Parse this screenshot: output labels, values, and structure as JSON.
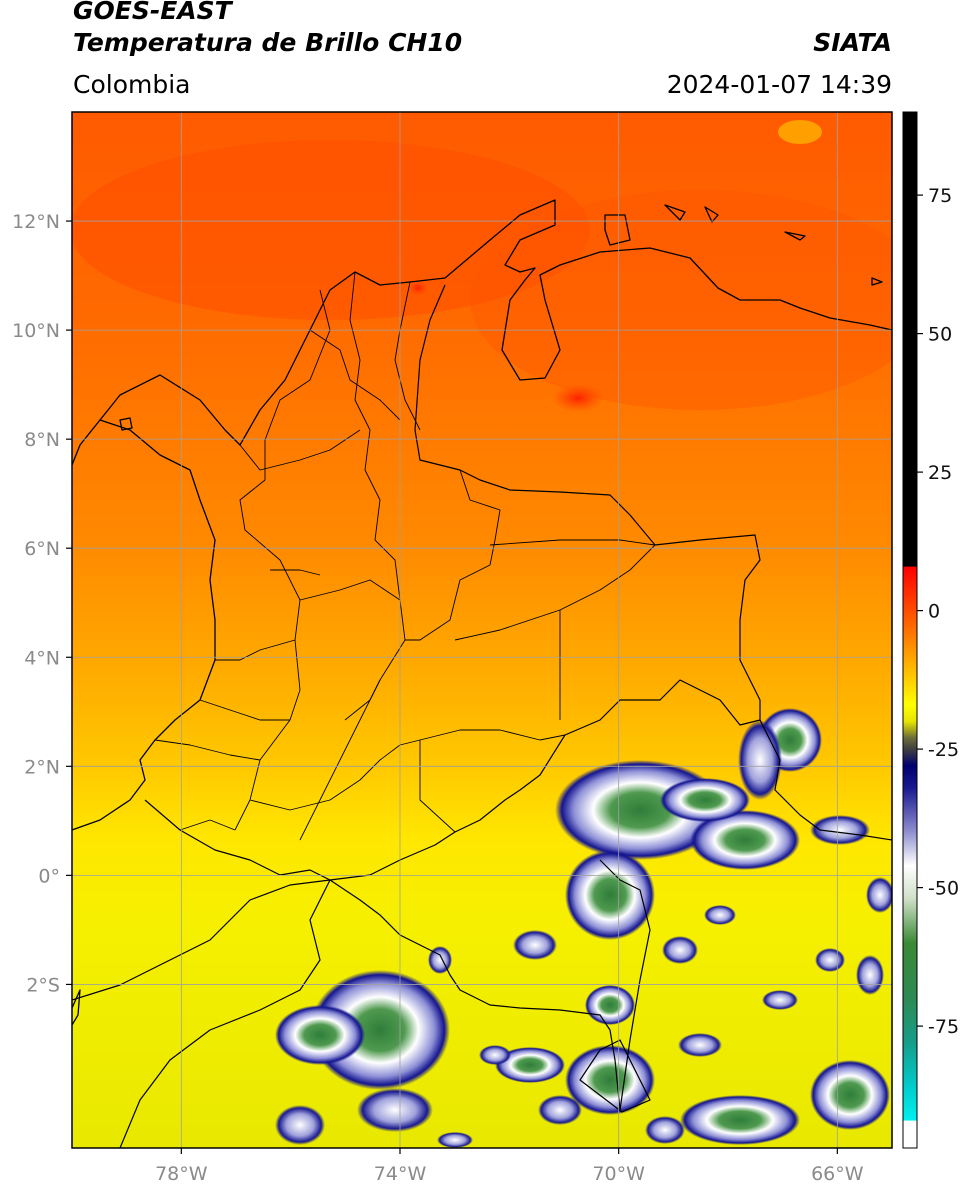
{
  "header": {
    "title_line1": "GOES-EAST",
    "title_line2": "Temperatura de Brillo CH10",
    "agency": "SIATA",
    "region": "Colombia",
    "timestamp": "2024-01-07 14:39"
  },
  "map": {
    "lon_range": [
      -80,
      -65
    ],
    "lat_range": [
      -5.0,
      14.0
    ],
    "lon_ticks": [
      {
        "value": -78,
        "label": "78°W"
      },
      {
        "value": -74,
        "label": "74°W"
      },
      {
        "value": -70,
        "label": "70°W"
      },
      {
        "value": -66,
        "label": "66°W"
      }
    ],
    "lat_ticks": [
      {
        "value": 12,
        "label": "12°N"
      },
      {
        "value": 10,
        "label": "10°N"
      },
      {
        "value": 8,
        "label": "8°N"
      },
      {
        "value": 6,
        "label": "6°N"
      },
      {
        "value": 4,
        "label": "4°N"
      },
      {
        "value": 2,
        "label": "2°N"
      },
      {
        "value": 0,
        "label": "0°"
      },
      {
        "value": -2,
        "label": "2°S"
      }
    ],
    "grid": true
  },
  "colorbar": {
    "range": [
      -97,
      90
    ],
    "ticks": [
      {
        "value": 75,
        "label": "75"
      },
      {
        "value": 50,
        "label": "50"
      },
      {
        "value": 25,
        "label": "25"
      },
      {
        "value": 0,
        "label": "0"
      },
      {
        "value": -25,
        "label": "-25"
      },
      {
        "value": -50,
        "label": "-50"
      },
      {
        "value": -75,
        "label": "-75"
      }
    ],
    "stops": [
      {
        "value": 90,
        "color": "#000000"
      },
      {
        "value": 8,
        "color": "#000000"
      },
      {
        "value": 7.9,
        "color": "#ff0000"
      },
      {
        "value": -2,
        "color": "#ff6000"
      },
      {
        "value": -10,
        "color": "#ffb400"
      },
      {
        "value": -17,
        "color": "#ffff00"
      },
      {
        "value": -20,
        "color": "#e6e600"
      },
      {
        "value": -23,
        "color": "#6b6b3a"
      },
      {
        "value": -25,
        "color": "#404040"
      },
      {
        "value": -28,
        "color": "#000070"
      },
      {
        "value": -32,
        "color": "#1a1a90"
      },
      {
        "value": -40,
        "color": "#9090d0"
      },
      {
        "value": -46,
        "color": "#ffffff"
      },
      {
        "value": -52,
        "color": "#cfe0c8"
      },
      {
        "value": -60,
        "color": "#3a8a35"
      },
      {
        "value": -70,
        "color": "#2e8a55"
      },
      {
        "value": -78,
        "color": "#169e8a"
      },
      {
        "value": -86,
        "color": "#00cccc"
      },
      {
        "value": -92,
        "color": "#00f0f0"
      },
      {
        "value": -92.1,
        "color": "#ffffff"
      },
      {
        "value": -97,
        "color": "#ffffff"
      }
    ]
  }
}
